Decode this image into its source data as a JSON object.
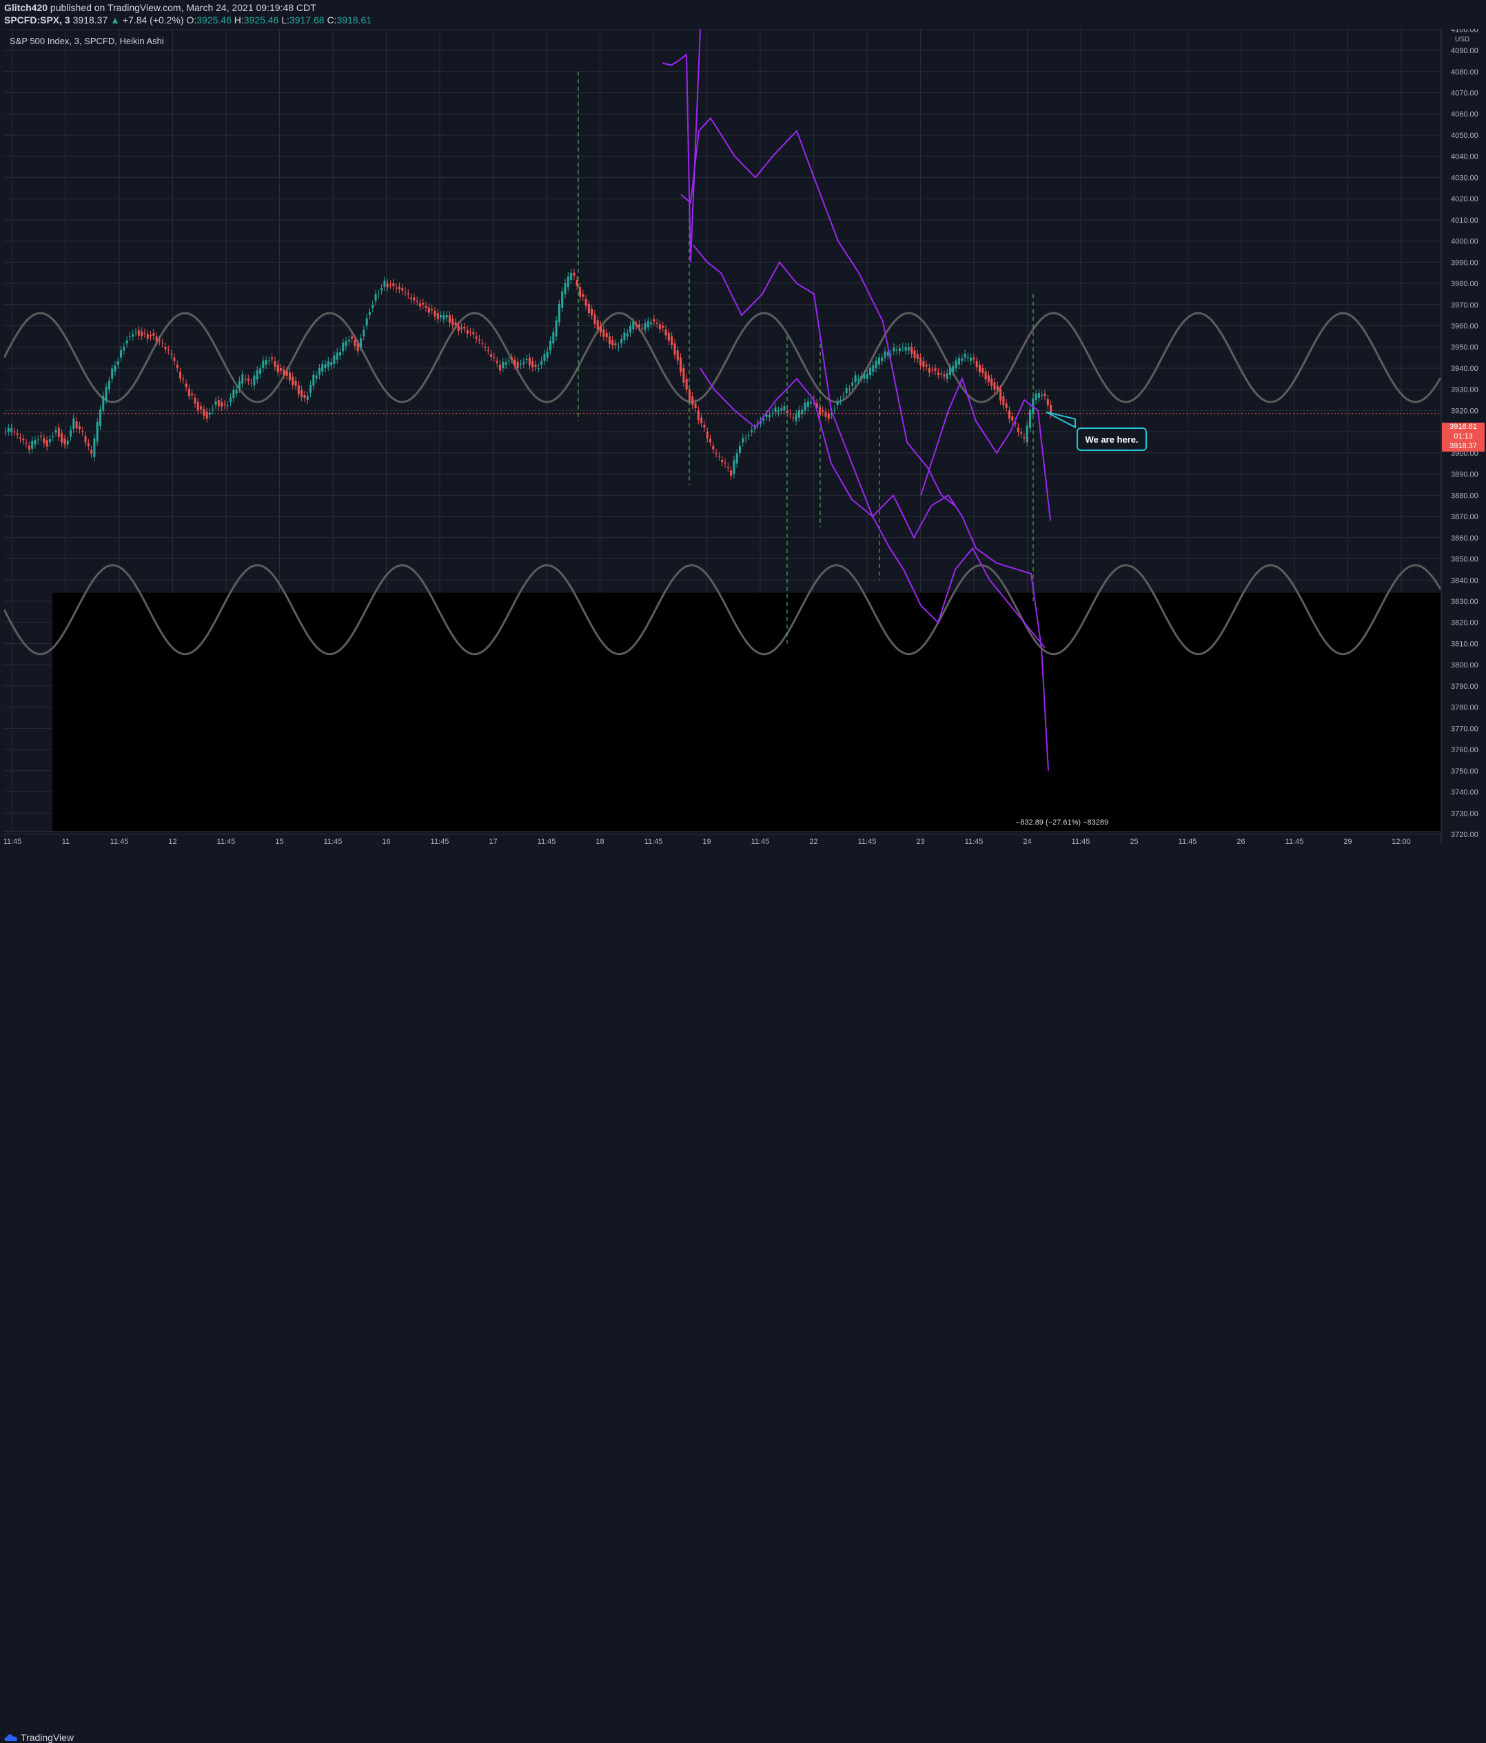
{
  "header": {
    "author": "Glitch420",
    "published_text": "published on TradingView.com, March 24, 2021 09:19:48 CDT",
    "symbol": "SPCFD:SPX, 3",
    "last": "3918.37",
    "change_arrow": "▲",
    "change": "+7.84 (+0.2%)",
    "o_label": "O:",
    "o_val": "3925.46",
    "h_label": "H:",
    "h_val": "3925.46",
    "l_label": "L:",
    "l_val": "3917.68",
    "c_label": "C:",
    "c_val": "3918.61"
  },
  "series_title": "S&P 500 Index, 3, SPCFD, Heikin Ashi",
  "callout": "We are here.",
  "price_tags": {
    "tag1": "3918.61",
    "tag2": "01:13",
    "tag3": "3918.37"
  },
  "measure_label": "−832.89 (−27.61%) −83289",
  "footer": {
    "brand": "TradingView"
  },
  "colors": {
    "background": "#131722",
    "grid": "#2a2e39",
    "up": "#26a69a",
    "down": "#ef5350",
    "projection": "#9c27f0",
    "sine": "#5d5d5d",
    "callout_border": "#26c6da",
    "marker": "#4caf50"
  },
  "chart_data": {
    "type": "line",
    "title": "S&P 500 Index, 3, SPCFD, Heikin Ashi",
    "currency_label": "USD",
    "y_ticks": [
      "4100.00",
      "4090.00",
      "4080.00",
      "4070.00",
      "4060.00",
      "4050.00",
      "4040.00",
      "4030.00",
      "4020.00",
      "4010.00",
      "4000.00",
      "3990.00",
      "3980.00",
      "3970.00",
      "3960.00",
      "3950.00",
      "3940.00",
      "3930.00",
      "3920.00",
      "3910.00",
      "3900.00",
      "3890.00",
      "3880.00",
      "3870.00",
      "3860.00",
      "3850.00",
      "3840.00",
      "3830.00",
      "3820.00",
      "3810.00",
      "3800.00",
      "3790.00",
      "3780.00",
      "3770.00",
      "3760.00",
      "3750.00",
      "3740.00",
      "3730.00",
      "3720.00"
    ],
    "ylim": [
      3720,
      4104
    ],
    "x_ticks": [
      "11:45",
      "11",
      "11:45",
      "12",
      "11:45",
      "15",
      "11:45",
      "16",
      "11:45",
      "17",
      "11:45",
      "18",
      "11:45",
      "19",
      "11:45",
      "22",
      "11:45",
      "23",
      "11:45",
      "24",
      "11:45",
      "25",
      "11:45",
      "26",
      "11:45",
      "29",
      "12:00"
    ],
    "last_price": 3918.61,
    "series": [
      {
        "values": [
          3910,
          3906,
          3902,
          3908,
          3905,
          3912,
          3904,
          3915,
          3908,
          3898,
          3920,
          3935,
          3945,
          3955,
          3958,
          3956,
          3955,
          3950,
          3945,
          3935,
          3928,
          3922,
          3918,
          3925,
          3922,
          3928,
          3935,
          3932,
          3940,
          3945,
          3940,
          3938,
          3932,
          3925,
          3935,
          3940,
          3942,
          3948,
          3955,
          3950,
          3965,
          3975,
          3980,
          3978,
          3976,
          3972,
          3970,
          3968,
          3965,
          3965,
          3960,
          3958,
          3955,
          3950,
          3945,
          3940,
          3945,
          3942,
          3945,
          3940,
          3945,
          3955,
          3975,
          3985,
          3975,
          3968,
          3960,
          3955,
          3950,
          3955,
          3960,
          3958,
          3962,
          3960,
          3955,
          3945,
          3930,
          3920,
          3910,
          3900,
          3895,
          3890,
          3905,
          3910,
          3915,
          3918,
          3920,
          3920,
          3915,
          3920,
          3925,
          3920,
          3918,
          3925,
          3930,
          3935,
          3935,
          3940,
          3945,
          3948,
          3950,
          3950,
          3945,
          3940,
          3938,
          3935,
          3940,
          3945,
          3945,
          3940,
          3935,
          3930,
          3920,
          3912,
          3905,
          3925,
          3928,
          3920
        ]
      }
    ]
  }
}
